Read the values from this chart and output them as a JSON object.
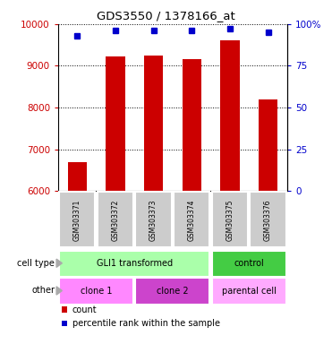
{
  "title": "GDS3550 / 1378166_at",
  "samples": [
    "GSM303371",
    "GSM303372",
    "GSM303373",
    "GSM303374",
    "GSM303375",
    "GSM303376"
  ],
  "counts": [
    6680,
    9220,
    9240,
    9170,
    9620,
    8200
  ],
  "percentile_ranks": [
    93,
    96,
    96,
    96,
    97,
    95
  ],
  "ylim_left": [
    6000,
    10000
  ],
  "ylim_right": [
    0,
    100
  ],
  "yticks_left": [
    6000,
    7000,
    8000,
    9000,
    10000
  ],
  "yticks_right": [
    0,
    25,
    50,
    75,
    100
  ],
  "ytick_labels_right": [
    "0",
    "25",
    "50",
    "75",
    "100%"
  ],
  "bar_color": "#cc0000",
  "dot_color": "#0000cc",
  "bar_width": 0.5,
  "cell_type_groups": [
    {
      "text": "GLI1 transformed",
      "cols": [
        0,
        1,
        2,
        3
      ],
      "color": "#aaffaa"
    },
    {
      "text": "control",
      "cols": [
        4,
        5
      ],
      "color": "#44cc44"
    }
  ],
  "other_groups": [
    {
      "text": "clone 1",
      "cols": [
        0,
        1
      ],
      "color": "#ff88ff"
    },
    {
      "text": "clone 2",
      "cols": [
        2,
        3
      ],
      "color": "#cc44cc"
    },
    {
      "text": "parental cell",
      "cols": [
        4,
        5
      ],
      "color": "#ffaaff"
    }
  ],
  "row_label_cell_type": "cell type",
  "row_label_other": "other",
  "legend_count_label": "count",
  "legend_pct_label": "percentile rank within the sample",
  "left_axis_color": "#cc0000",
  "right_axis_color": "#0000cc",
  "sample_bg_color": "#cccccc",
  "sample_border_color": "#ffffff"
}
